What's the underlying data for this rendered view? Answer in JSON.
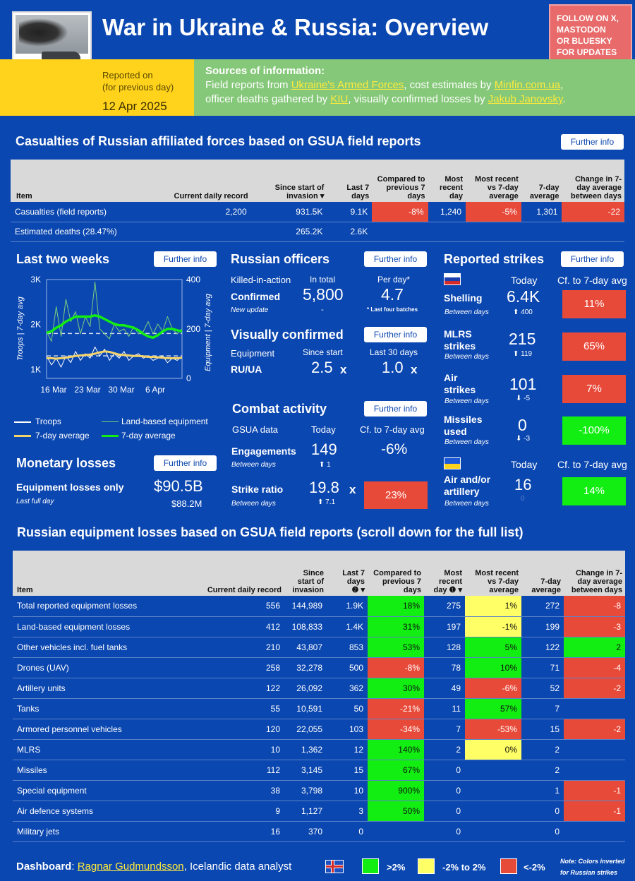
{
  "header": {
    "title": "War in Ukraine & Russia: Overview",
    "follow": [
      "FOLLOW ON X,",
      "MASTODON",
      "OR BLUESKY",
      "FOR UPDATES"
    ],
    "reported_label_1": "Reported on",
    "reported_label_2": "(for previous day)",
    "reported_date": "12 Apr 2025",
    "sources_title": "Sources of information:",
    "sources": {
      "t1": "Field reports from ",
      "l1": "Ukraine's Armed Forces",
      "t2": ", cost estimates by ",
      "l2": "Minfin.com.ua",
      "t3": ",",
      "t4": "officer deaths gathered by ",
      "l3": "KIU",
      "t5": ", visually confirmed losses by ",
      "l4": "Jakub Janovsky",
      "t6": "."
    }
  },
  "further_info": "Further info",
  "casualties": {
    "title": "Casualties of Russian affiliated forces based on GSUA field reports",
    "headers": [
      "Item",
      "Current daily record",
      "Since start of invasion",
      "Last 7 days",
      "Compared to previous 7 days",
      "Most recent day",
      "Most recent vs 7-day average",
      "7-day average",
      "Change in 7-day average between days"
    ],
    "rows": [
      {
        "item": "Casualties (field reports)",
        "record": "2,200",
        "since": "931.5K",
        "last7": "9.1K",
        "cmp": "-8%",
        "recent": "1,240",
        "vs": "-5%",
        "avg": "1,301",
        "chg": "-22"
      },
      {
        "item": "Estimated deaths (28.47%)",
        "record": "",
        "since": "265.2K",
        "last7": "2.6K",
        "cmp": "",
        "recent": "",
        "vs": "",
        "avg": "",
        "chg": ""
      }
    ]
  },
  "two_weeks": {
    "title": "Last two weeks",
    "y_left_label": "Troops | 7-day avg",
    "y_right_label": "Equipment | 7-day avg",
    "legend": [
      "Troops",
      "Land-based equipment",
      "7-day average",
      "7-day average"
    ]
  },
  "chart_data": {
    "type": "line",
    "title": "Last two weeks",
    "x_ticks": [
      "16 Mar",
      "23 Mar",
      "30 Mar",
      "6 Apr"
    ],
    "y_left_ticks": [
      "3K",
      "2K",
      "1K"
    ],
    "y_right_ticks": [
      "400",
      "200",
      "0"
    ],
    "ylim_left": [
      800,
      3000
    ],
    "ylim_right": [
      0,
      400
    ],
    "series": [
      {
        "name": "Troops",
        "axis": "left",
        "values": [
          1300,
          1100,
          1250,
          1050,
          1300,
          1150,
          1400,
          1200,
          1350,
          1250,
          1500,
          1300,
          1450,
          1200,
          1350,
          1250,
          1400,
          1200,
          1300,
          1350,
          1250,
          1300,
          1200,
          1250,
          1300,
          1150,
          1250,
          1200,
          1280
        ]
      },
      {
        "name": "Land-based equipment",
        "axis": "right",
        "values": [
          190,
          150,
          290,
          170,
          320,
          230,
          270,
          180,
          250,
          210,
          390,
          200,
          180,
          160,
          220,
          190,
          200,
          170,
          210,
          180,
          190,
          230,
          180,
          220,
          190,
          250,
          200,
          180,
          200
        ]
      },
      {
        "name": "7-day average (troops)",
        "axis": "left",
        "values": [
          1250,
          1250,
          1240,
          1250,
          1260,
          1280,
          1300,
          1310,
          1320,
          1330,
          1350,
          1380,
          1400,
          1390,
          1360,
          1330,
          1320,
          1310,
          1300,
          1300,
          1290,
          1280,
          1280,
          1270,
          1260,
          1250,
          1250,
          1250,
          1260
        ]
      },
      {
        "name": "7-day average (equipment)",
        "axis": "right",
        "values": [
          185,
          190,
          205,
          215,
          230,
          240,
          250,
          250,
          250,
          250,
          255,
          250,
          240,
          230,
          220,
          215,
          215,
          210,
          205,
          195,
          180,
          170,
          165,
          175,
          190,
          200,
          200,
          195,
          190
        ]
      }
    ],
    "reference_lines": [
      {
        "axis": "left",
        "value": 1800
      },
      {
        "axis": "left",
        "value": 1300
      }
    ]
  },
  "officers": {
    "title": "Russian officers",
    "kia": "Killed-in-action",
    "in_total": "In total",
    "per_day": "Per day*",
    "confirmed": "Confirmed",
    "new_update": "New update",
    "total": "5,800",
    "dash": "-",
    "per_day_value": "4.7",
    "footnote": "* Last four batches"
  },
  "visual": {
    "title": "Visually confirmed",
    "equipment": "Equipment",
    "since_start": "Since start",
    "last30": "Last 30 days",
    "ruua": "RU/UA",
    "since_value": "2.5",
    "last30_value": "1.0",
    "x": "x"
  },
  "combat": {
    "title": "Combat activity",
    "gsua": "GSUA data",
    "today": "Today",
    "cf": "Cf. to 7-day avg",
    "engagements": "Engagements",
    "between": "Between days",
    "eng_value": "149",
    "eng_delta": "1",
    "eng_cf": "-6%",
    "strike_ratio": "Strike ratio",
    "sr_value": "19.8",
    "sr_x": "x",
    "sr_delta": "7.1",
    "sr_cf": "23%"
  },
  "monetary": {
    "title": "Monetary losses",
    "label": "Equipment losses only",
    "sub": "Last full day",
    "total": "$90.5B",
    "day": "$88.2M"
  },
  "strikes": {
    "title": "Reported strikes",
    "today": "Today",
    "cf": "Cf. to 7-day avg",
    "between": "Between days",
    "rows": [
      {
        "name": "Shelling",
        "value": "6.4K",
        "delta": "400",
        "cf": "11%"
      },
      {
        "name": "MLRS strikes",
        "value": "215",
        "delta": "119",
        "cf": "65%"
      },
      {
        "name": "Air strikes",
        "value": "101",
        "delta": "-5",
        "cf": "7%"
      },
      {
        "name": "Missiles used",
        "value": "0",
        "delta": "-3",
        "cf": "-100%"
      }
    ],
    "ua_today": "Today",
    "ua_cf": "Cf. to 7-day avg",
    "ua_name": "Air and/or artillery",
    "ua_value": "16",
    "ua_delta": "0",
    "ua_cfv": "14%"
  },
  "equipment": {
    "title": "Russian equipment losses based on GSUA field reports (scroll down for the full list)",
    "headers": [
      "Item",
      "Current daily record",
      "Since start of invasion",
      "Last 7 days",
      "Compared to previous 7 days",
      "Most recent day",
      "Most recent vs 7-day average",
      "7-day average",
      "Change in 7-day average between days"
    ],
    "rows": [
      {
        "item": "Total reported equipment losses",
        "record": "556",
        "since": "144,989",
        "last7": "1.9K",
        "cmp": "18%",
        "recent": "275",
        "vs": "1%",
        "avg": "272",
        "chg": "-8"
      },
      {
        "item": "Land-based equipment losses",
        "record": "412",
        "since": "108,833",
        "last7": "1.4K",
        "cmp": "31%",
        "recent": "197",
        "vs": "-1%",
        "avg": "199",
        "chg": "-3"
      },
      {
        "item": "Other vehicles incl. fuel tanks",
        "record": "210",
        "since": "43,807",
        "last7": "853",
        "cmp": "53%",
        "recent": "128",
        "vs": "5%",
        "avg": "122",
        "chg": "2"
      },
      {
        "item": "Drones (UAV)",
        "record": "258",
        "since": "32,278",
        "last7": "500",
        "cmp": "-8%",
        "recent": "78",
        "vs": "10%",
        "avg": "71",
        "chg": "-4"
      },
      {
        "item": "Artillery units",
        "record": "122",
        "since": "26,092",
        "last7": "362",
        "cmp": "30%",
        "recent": "49",
        "vs": "-6%",
        "avg": "52",
        "chg": "-2"
      },
      {
        "item": "Tanks",
        "record": "55",
        "since": "10,591",
        "last7": "50",
        "cmp": "-21%",
        "recent": "11",
        "vs": "57%",
        "avg": "7",
        "chg": ""
      },
      {
        "item": "Armored personnel vehicles",
        "record": "120",
        "since": "22,055",
        "last7": "103",
        "cmp": "-34%",
        "recent": "7",
        "vs": "-53%",
        "avg": "15",
        "chg": "-2"
      },
      {
        "item": "MLRS",
        "record": "10",
        "since": "1,362",
        "last7": "12",
        "cmp": "140%",
        "recent": "2",
        "vs": "0%",
        "avg": "2",
        "chg": ""
      },
      {
        "item": "Missiles",
        "record": "112",
        "since": "3,145",
        "last7": "15",
        "cmp": "67%",
        "recent": "0",
        "vs": "",
        "avg": "2",
        "chg": ""
      },
      {
        "item": "Special equipment",
        "record": "38",
        "since": "3,798",
        "last7": "10",
        "cmp": "900%",
        "recent": "0",
        "vs": "",
        "avg": "1",
        "chg": "-1"
      },
      {
        "item": "Air defence systems",
        "record": "9",
        "since": "1,127",
        "last7": "3",
        "cmp": "50%",
        "recent": "0",
        "vs": "",
        "avg": "0",
        "chg": "-1"
      },
      {
        "item": "Military jets",
        "record": "16",
        "since": "370",
        "last7": "0",
        "cmp": "",
        "recent": "0",
        "vs": "",
        "avg": "0",
        "chg": ""
      }
    ]
  },
  "footer": {
    "label": "Dashboard",
    "colon": ": ",
    "author": "Ragnar Gudmundsson",
    "desc": ", Icelandic data analyst",
    "leg_green": ">2%",
    "leg_yellow": "-2% to 2%",
    "leg_red": "<-2%",
    "note1": "Note: Colors inverted",
    "note2": "for Russian strikes"
  },
  "colors": {
    "bg": "#0b47b0",
    "red": "#e84a3a",
    "green": "#12ee12",
    "yellow": "#ffff66"
  }
}
